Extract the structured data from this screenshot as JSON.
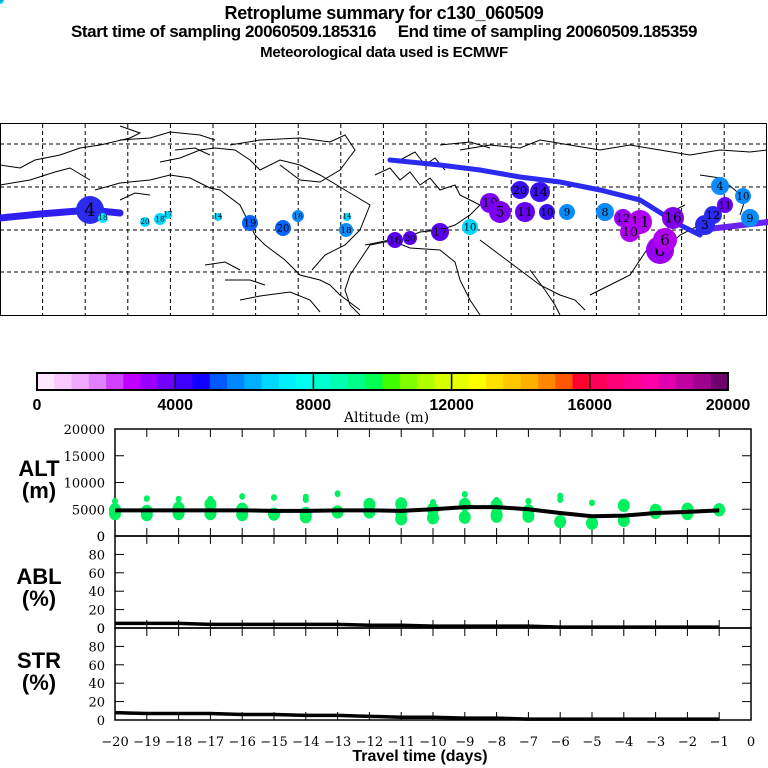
{
  "header": {
    "title": "Retroplume summary for c130_060509",
    "subtitle": "Start time of sampling 20060509.185316     End time of sampling 20060509.185359",
    "met_line": "Meteorological data used is ECMWF"
  },
  "map": {
    "description": "World map (Pacific-centered, 180W to 180E, approx 0-90N visible with dashed lat/lon grid)",
    "track_color": "#2a2af0",
    "clusters": [
      {
        "label": "6",
        "region": "west-pacific",
        "color": "#9a00f0",
        "day": 6
      },
      {
        "label": "4",
        "region": "north-pacific",
        "color": "#2a2af0",
        "day": 4
      },
      {
        "label": "18",
        "region": "north-america-west",
        "color": "#00e8ff",
        "day": 18
      },
      {
        "label": "20",
        "region": "north-america",
        "color": "#00d8ff",
        "day": 20
      },
      {
        "label": "18",
        "region": "north-america",
        "color": "#00d8ff",
        "day": 18
      },
      {
        "label": "17",
        "region": "north-america",
        "color": "#00d8ff",
        "day": 17
      },
      {
        "label": "14",
        "region": "great-lakes",
        "color": "#00d8ff",
        "day": 14
      },
      {
        "label": "18",
        "region": "east-canada",
        "color": "#00d8ff",
        "day": 18
      },
      {
        "label": "19",
        "region": "atlantic",
        "color": "#0a62ff",
        "day": 19
      },
      {
        "label": "20",
        "region": "atlantic",
        "color": "#0a62ff",
        "day": 20
      },
      {
        "label": "18",
        "region": "atlantic",
        "color": "#0a8cff",
        "day": 18
      },
      {
        "label": "14",
        "region": "atlantic",
        "color": "#00d8ff",
        "day": 14
      },
      {
        "label": "18",
        "region": "atlantic",
        "color": "#0a8cff",
        "day": 18
      },
      {
        "label": "16",
        "region": "mediterranean",
        "color": "#5a00f0",
        "day": 16
      },
      {
        "label": "20",
        "region": "mediterranean",
        "color": "#5a00f0",
        "day": 20
      },
      {
        "label": "17",
        "region": "mediterranean",
        "color": "#5a00f0",
        "day": 17
      },
      {
        "label": "10",
        "region": "middle-east",
        "color": "#00d8ff",
        "day": 10
      },
      {
        "label": "19",
        "region": "central-asia",
        "color": "#7a00f0",
        "day": 19
      },
      {
        "label": "5",
        "region": "central-asia",
        "color": "#7a00f0",
        "day": 5
      },
      {
        "label": "20",
        "region": "siberia",
        "color": "#3a10f0",
        "day": 20
      },
      {
        "label": "14",
        "region": "siberia",
        "color": "#3a10f0",
        "day": 14
      },
      {
        "label": "11",
        "region": "central-asia",
        "color": "#6a00f0",
        "day": 11
      },
      {
        "label": "10",
        "region": "central-asia",
        "color": "#3a10f0",
        "day": 10
      },
      {
        "label": "9",
        "region": "central-asia",
        "color": "#0a8cff",
        "day": 9
      },
      {
        "label": "8",
        "region": "east-asia",
        "color": "#0a8cff",
        "day": 8
      },
      {
        "label": "12",
        "region": "east-asia",
        "color": "#9a00f0",
        "day": 12
      },
      {
        "label": "11",
        "region": "east-asia",
        "color": "#b000f0",
        "day": 11
      },
      {
        "label": "10",
        "region": "east-asia",
        "color": "#b000f0",
        "day": 10
      },
      {
        "label": "6",
        "region": "east-asia",
        "color": "#b000f0",
        "day": 6
      },
      {
        "label": "16",
        "region": "japan",
        "color": "#8000f0",
        "day": 16
      },
      {
        "label": "3",
        "region": "japan",
        "color": "#2a2af0",
        "day": 3
      },
      {
        "label": "12",
        "region": "kamchatka",
        "color": "#2a2af0",
        "day": 12
      },
      {
        "label": "11",
        "region": "kamchatka",
        "color": "#6a00f0",
        "day": 11
      },
      {
        "label": "10",
        "region": "kamchatka",
        "color": "#0a8cff",
        "day": 10
      },
      {
        "label": "9",
        "region": "kamchatka",
        "color": "#0a8cff",
        "day": 9
      },
      {
        "label": "4",
        "region": "kamchatka",
        "color": "#0a8cff",
        "day": 4
      },
      {
        "label": "8",
        "region": "kamchatka",
        "color": "#00d8ff",
        "day": 8
      }
    ]
  },
  "colorbar": {
    "ticks": [
      "0",
      "4000",
      "8000",
      "12000",
      "16000",
      "20000"
    ],
    "label": "Altitude (m)",
    "colors": [
      "#ffe8ff",
      "#f8c8ff",
      "#f0a8ff",
      "#e080ff",
      "#d040ff",
      "#c000ff",
      "#9a00ff",
      "#7000ff",
      "#4000ff",
      "#1000ff",
      "#0058ff",
      "#0088ff",
      "#00b0ff",
      "#00d8ff",
      "#00f0ff",
      "#00ffee",
      "#00ffd0",
      "#00ffb0",
      "#00ff88",
      "#00ff50",
      "#40ff00",
      "#80ff00",
      "#b0ff00",
      "#d8ff00",
      "#e8ff00",
      "#ffff00",
      "#ffe000",
      "#ffc800",
      "#ffb000",
      "#ff8800",
      "#ff5800",
      "#ff0030",
      "#ff0058",
      "#ff0078",
      "#ff0090",
      "#ff00a8",
      "#e000b0",
      "#c000a0",
      "#a00090",
      "#700070"
    ]
  },
  "panels": {
    "alt": {
      "label": "ALT",
      "unit": "(m)"
    },
    "abl": {
      "label": "ABL",
      "unit": "(%)"
    },
    "str": {
      "label": "STR",
      "unit": "(%)"
    },
    "xlabel": "Travel time (days)"
  },
  "chart_data": [
    {
      "type": "line",
      "title": "ALT",
      "ylabel": "ALT (m)",
      "xlabel": "Travel time (days)",
      "xlim": [
        -20,
        0
      ],
      "ylim": [
        0,
        20000
      ],
      "yticks": [
        "0",
        "5000",
        "10000",
        "15000",
        "20000"
      ],
      "xticks": [
        "-20",
        "-19",
        "-18",
        "-17",
        "-16",
        "-15",
        "-14",
        "-13",
        "-12",
        "-11",
        "-10",
        "-9",
        "-8",
        "-7",
        "-6",
        "-5",
        "-4",
        "-3",
        "-2",
        "-1",
        "0"
      ],
      "series": [
        {
          "name": "mean altitude",
          "color": "#000000",
          "x": [
            -20,
            -19,
            -18,
            -17,
            -16,
            -15,
            -14,
            -13,
            -12,
            -11,
            -10,
            -9,
            -8,
            -7,
            -6,
            -5,
            -4,
            -3,
            -2,
            -1
          ],
          "values": [
            4800,
            4800,
            4800,
            4800,
            4800,
            4700,
            4700,
            4800,
            4800,
            4700,
            5000,
            5400,
            5400,
            5000,
            4300,
            3700,
            3800,
            4300,
            4500,
            4800
          ]
        },
        {
          "name": "cluster altitudes",
          "color": "#00f060",
          "type": "scatter",
          "points": [
            [
              -20,
              6500
            ],
            [
              -20,
              4900
            ],
            [
              -20,
              4200
            ],
            [
              -19,
              7000
            ],
            [
              -19,
              4600
            ],
            [
              -19,
              4000
            ],
            [
              -18,
              6900
            ],
            [
              -18,
              5200
            ],
            [
              -18,
              4200
            ],
            [
              -17,
              6900
            ],
            [
              -17,
              5900
            ],
            [
              -17,
              4200
            ],
            [
              -16,
              7400
            ],
            [
              -16,
              5000
            ],
            [
              -16,
              4000
            ],
            [
              -15,
              7200
            ],
            [
              -15,
              4100
            ],
            [
              -14,
              7300
            ],
            [
              -14,
              6800
            ],
            [
              -14,
              4200
            ],
            [
              -14,
              3600
            ],
            [
              -13,
              7900
            ],
            [
              -13,
              4500
            ],
            [
              -12,
              5900
            ],
            [
              -12,
              4500
            ],
            [
              -11,
              6000
            ],
            [
              -11,
              4500
            ],
            [
              -11,
              3200
            ],
            [
              -10,
              6300
            ],
            [
              -10,
              5000
            ],
            [
              -10,
              3400
            ],
            [
              -9,
              7800
            ],
            [
              -9,
              6500
            ],
            [
              -9,
              5900
            ],
            [
              -9,
              3500
            ],
            [
              -8,
              6700
            ],
            [
              -8,
              5800
            ],
            [
              -8,
              4000
            ],
            [
              -8,
              3700
            ],
            [
              -7,
              6500
            ],
            [
              -7,
              4700
            ],
            [
              -7,
              3700
            ],
            [
              -6,
              7500
            ],
            [
              -6,
              6800
            ],
            [
              -6,
              2700
            ],
            [
              -5,
              6200
            ],
            [
              -5,
              2400
            ],
            [
              -4,
              5700
            ],
            [
              -4,
              2900
            ],
            [
              -3,
              4800
            ],
            [
              -3,
              4400
            ],
            [
              -2,
              5000
            ],
            [
              -2,
              4200
            ],
            [
              -1,
              4900
            ]
          ]
        }
      ]
    },
    {
      "type": "line",
      "title": "ABL",
      "ylabel": "ABL (%)",
      "xlim": [
        -20,
        0
      ],
      "ylim": [
        0,
        100
      ],
      "yticks": [
        "0",
        "20",
        "40",
        "60",
        "80",
        "0"
      ],
      "series": [
        {
          "name": "ABL fraction",
          "color": "#000000",
          "x": [
            -20,
            -19,
            -18,
            -17,
            -16,
            -15,
            -14,
            -13,
            -12,
            -11,
            -10,
            -9,
            -8,
            -7,
            -6,
            -5,
            -4,
            -3,
            -2,
            -1
          ],
          "values": [
            5,
            5,
            5,
            4,
            4,
            4,
            4,
            4,
            3,
            3,
            2,
            2,
            2,
            2,
            1,
            1,
            1,
            1,
            1,
            1
          ]
        }
      ]
    },
    {
      "type": "line",
      "title": "STR",
      "ylabel": "STR (%)",
      "xlim": [
        -20,
        0
      ],
      "ylim": [
        0,
        100
      ],
      "yticks": [
        "0",
        "20",
        "40",
        "60",
        "80",
        "0"
      ],
      "series": [
        {
          "name": "STR fraction",
          "color": "#000000",
          "x": [
            -20,
            -19,
            -18,
            -17,
            -16,
            -15,
            -14,
            -13,
            -12,
            -11,
            -10,
            -9,
            -8,
            -7,
            -6,
            -5,
            -4,
            -3,
            -2,
            -1
          ],
          "values": [
            8,
            7,
            7,
            7,
            6,
            6,
            5,
            5,
            4,
            3,
            3,
            2,
            2,
            1,
            1,
            1,
            1,
            1,
            1,
            1
          ]
        }
      ]
    }
  ]
}
